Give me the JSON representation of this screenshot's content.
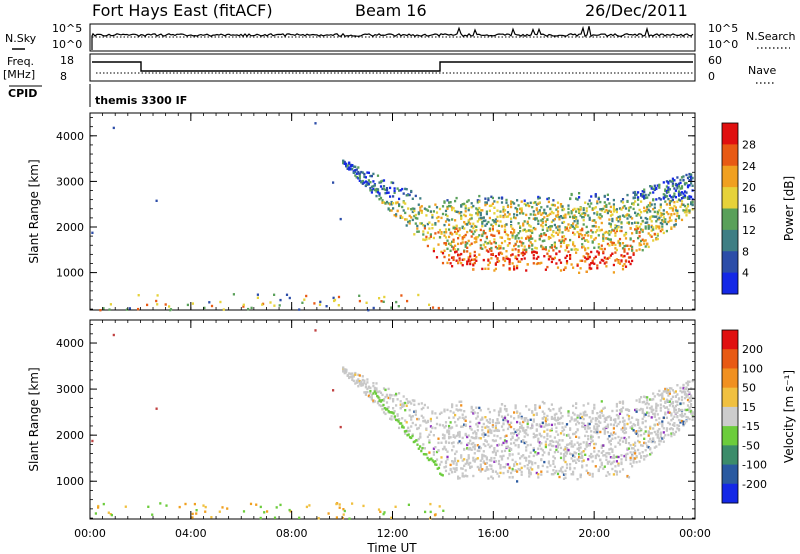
{
  "header": {
    "site": "Fort Hays East (fitACF)",
    "beam": "Beam 16",
    "date": "26/Dec/2011"
  },
  "params": {
    "nsky_label": "N.Sky",
    "nsearch_label": "N.Search",
    "freq_label": "Freq.",
    "freq_unit": "[MHz]",
    "nave_label": "Nave",
    "cpid_label": "CPID",
    "cpid_text": "themis 3300 IF",
    "noise_left_ticks": [
      "10^5",
      "10^0"
    ],
    "noise_right_ticks": [
      "10^5",
      "10^0"
    ],
    "freq_left_ticks": [
      "18",
      "8"
    ],
    "nave_right_ticks": [
      "60",
      "0"
    ]
  },
  "chart_data": [
    {
      "type": "heatmap",
      "name": "power-panel",
      "ylabel": "Slant Range [km]",
      "xlabel": "",
      "colorbar_label": "Power [dB]",
      "colorbar_ticks": [
        "4",
        "8",
        "12",
        "16",
        "20",
        "24",
        "28"
      ],
      "colorbar_colors": [
        "#1428e6",
        "#2c4da8",
        "#3f7e84",
        "#5aa05a",
        "#e6d23a",
        "#f0a020",
        "#e85a14",
        "#e01010"
      ],
      "ylim": [
        180,
        4500
      ],
      "yticks": [
        1000,
        2000,
        3000,
        4000
      ],
      "xlim": [
        0,
        24
      ],
      "xticks": [
        "00:00",
        "04:00",
        "08:00",
        "12:00",
        "16:00",
        "20:00",
        "00:00"
      ]
    },
    {
      "type": "heatmap",
      "name": "velocity-panel",
      "ylabel": "Slant Range [km]",
      "xlabel": "Time UT",
      "colorbar_label": "Velocity [m s⁻¹]",
      "colorbar_ticks": [
        "200",
        "100",
        "50",
        "15",
        "-15",
        "-50",
        "-100",
        "-200"
      ],
      "colorbar_colors": [
        "#1428e6",
        "#2a5aa0",
        "#3c8c6a",
        "#6ccc3c",
        "#cccccc",
        "#f0c040",
        "#f09020",
        "#e85a14",
        "#e01010"
      ],
      "ylim": [
        180,
        4500
      ],
      "yticks": [
        1000,
        2000,
        3000,
        4000
      ],
      "xlim": [
        0,
        24
      ],
      "xticks": [
        "00:00",
        "04:00",
        "08:00",
        "12:00",
        "16:00",
        "20:00",
        "00:00"
      ]
    }
  ]
}
